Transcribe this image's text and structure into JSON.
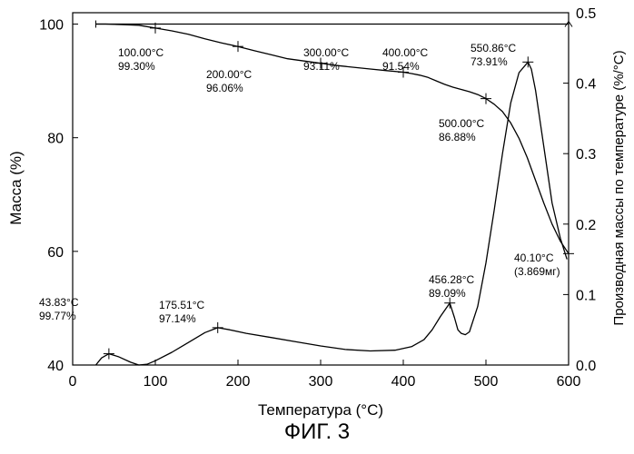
{
  "figure": {
    "caption": "ФИГ. 3"
  },
  "chart_data": {
    "type": "line",
    "title": "",
    "xlabel": "Температура (°C)",
    "ylabel": "Масса (%)",
    "ylabel_right": "Производная массы по температуре (%/°C)",
    "xlim": [
      0,
      600
    ],
    "ylim": [
      40,
      102
    ],
    "ylim_right": [
      0.0,
      0.5
    ],
    "x_ticks": [
      0,
      100,
      200,
      300,
      400,
      500,
      600
    ],
    "y_ticks": [
      40,
      60,
      80,
      100
    ],
    "y_ticks_right": [
      "0.0",
      "0.1",
      "0.2",
      "0.3",
      "0.4",
      "0.5"
    ],
    "grid": false,
    "legend": "none",
    "line_color": "#000000",
    "series": [
      {
        "axis": "left",
        "x": [
          28,
          40,
          60,
          80,
          100,
          120,
          140,
          160,
          180,
          200,
          220,
          240,
          260,
          280,
          300,
          320,
          340,
          360,
          380,
          400,
          410,
          420,
          430,
          440,
          450,
          460,
          470,
          480,
          490,
          500,
          510,
          520,
          530,
          540,
          550,
          560,
          570,
          580,
          590,
          600
        ],
        "y": [
          100.0,
          100.0,
          99.9,
          99.8,
          99.3,
          98.8,
          98.2,
          97.4,
          96.7,
          96.06,
          95.3,
          94.6,
          93.9,
          93.5,
          93.11,
          92.7,
          92.4,
          92.1,
          91.8,
          91.54,
          91.3,
          91.0,
          90.6,
          90.0,
          89.4,
          88.9,
          88.5,
          88.1,
          87.6,
          86.88,
          85.9,
          84.6,
          82.6,
          79.9,
          76.5,
          72.5,
          68.5,
          64.8,
          61.8,
          59.6
        ]
      },
      {
        "axis": "right",
        "x": [
          28,
          35,
          43.83,
          55,
          70,
          80,
          90,
          100,
          120,
          140,
          160,
          175.51,
          190,
          210,
          240,
          270,
          300,
          330,
          360,
          390,
          410,
          425,
          435,
          445,
          456.28,
          462,
          466,
          470,
          475,
          480,
          490,
          500,
          510,
          520,
          530,
          540,
          550.86,
          555,
          560,
          570,
          580,
          590,
          598
        ],
        "y": [
          0.0,
          0.01,
          0.016,
          0.012,
          0.004,
          0.0,
          0.001,
          0.006,
          0.018,
          0.032,
          0.046,
          0.053,
          0.05,
          0.045,
          0.039,
          0.033,
          0.027,
          0.022,
          0.02,
          0.021,
          0.026,
          0.036,
          0.05,
          0.069,
          0.088,
          0.067,
          0.05,
          0.045,
          0.043,
          0.047,
          0.083,
          0.145,
          0.22,
          0.3,
          0.372,
          0.415,
          0.43,
          0.42,
          0.39,
          0.31,
          0.23,
          0.18,
          0.15
        ]
      },
      {
        "axis": "left",
        "style": "reference",
        "x": [
          28,
          600
        ],
        "y": [
          100.0,
          100.0
        ]
      }
    ],
    "annotations": [
      {
        "axis": "left",
        "x": 100,
        "y": 99.3,
        "temp": "100.00°C",
        "value": "99.30%"
      },
      {
        "axis": "left",
        "x": 200,
        "y": 96.06,
        "temp": "200.00°C",
        "value": "96.06%"
      },
      {
        "axis": "left",
        "x": 300,
        "y": 93.11,
        "temp": "300.00°C",
        "value": "93.11%"
      },
      {
        "axis": "left",
        "x": 400,
        "y": 91.54,
        "temp": "400.00°C",
        "value": "91.54%"
      },
      {
        "axis": "left",
        "x": 500,
        "y": 86.88,
        "temp": "500.00°C",
        "value": "86.88%"
      },
      {
        "axis": "right",
        "x": 550.86,
        "y": 0.43,
        "temp": "550.86°C",
        "value": "73.91%"
      },
      {
        "axis": "right",
        "x": 43.83,
        "y": 0.016,
        "temp": "43.83°C",
        "value": "99.77%"
      },
      {
        "axis": "right",
        "x": 175.51,
        "y": 0.053,
        "temp": "175.51°C",
        "value": "97.14%"
      },
      {
        "axis": "right",
        "x": 456.28,
        "y": 0.088,
        "temp": "456.28°C",
        "value": "89.09%"
      },
      {
        "axis": "left",
        "x": 600,
        "y": 59.6,
        "temp": "40.10°C",
        "value": "(3.869мг)"
      }
    ]
  }
}
